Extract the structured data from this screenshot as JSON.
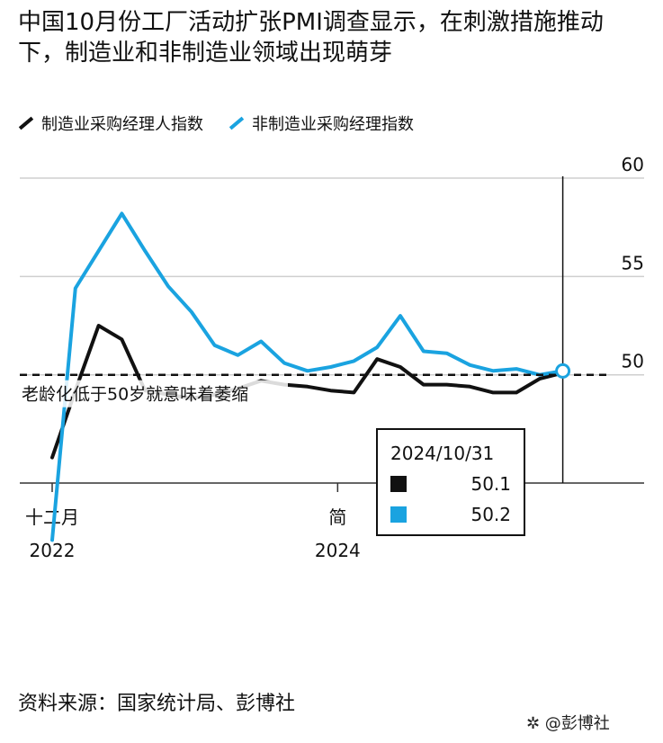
{
  "title": "中国10月份工厂活动扩张PMI调查显示，在刺激措施推动下，制造业和非制造业领域出现萌芽",
  "legend": [
    {
      "name": "制造业采购经理人指数",
      "color": "#111111"
    },
    {
      "name": "非制造业采购经理指数",
      "color": "#1aa3e0"
    }
  ],
  "annotation": "老龄化低于50岁就意味着萎缩",
  "tooltip": {
    "date": "2024/10/31",
    "rows": [
      {
        "color": "#111111",
        "value": "50.1"
      },
      {
        "color": "#1aa3e0",
        "value": "50.2"
      }
    ]
  },
  "source": "资料来源：国家统计局、彭博社",
  "watermark": "彭博社",
  "chart_data": {
    "type": "line",
    "ylim": [
      44.5,
      60
    ],
    "yticks": [
      50,
      55,
      60
    ],
    "x_labels": [
      {
        "label": "十二月",
        "year": "2022",
        "x": 0
      },
      {
        "label": "简",
        "year": "2024",
        "x": 12.3
      }
    ],
    "reference_line": 50,
    "series": [
      {
        "name": "制造业采购经理人指数",
        "color": "#111111",
        "points": [
          [
            0,
            45.8
          ],
          [
            1,
            49.2
          ],
          [
            2,
            52.5
          ],
          [
            3,
            51.8
          ],
          [
            4,
            49.2
          ],
          [
            5,
            49.0
          ],
          [
            6,
            48.8
          ],
          [
            7,
            49.0
          ],
          [
            8,
            49.3
          ],
          [
            9,
            49.7
          ],
          [
            10,
            49.5
          ],
          [
            11,
            49.4
          ],
          [
            12,
            49.2
          ],
          [
            13,
            49.1
          ],
          [
            14,
            50.8
          ],
          [
            15,
            50.4
          ],
          [
            16,
            49.5
          ],
          [
            17,
            49.5
          ],
          [
            18,
            49.4
          ],
          [
            19,
            49.1
          ],
          [
            20,
            49.1
          ],
          [
            21,
            49.8
          ],
          [
            22,
            50.1
          ]
        ]
      },
      {
        "name": "非制造业采购经理指数",
        "color": "#1aa3e0",
        "points": [
          [
            0,
            41.6
          ],
          [
            1,
            54.4
          ],
          [
            2,
            56.3
          ],
          [
            3,
            58.2
          ],
          [
            4,
            56.3
          ],
          [
            5,
            54.5
          ],
          [
            6,
            53.2
          ],
          [
            7,
            51.5
          ],
          [
            8,
            51.0
          ],
          [
            9,
            51.7
          ],
          [
            10,
            50.6
          ],
          [
            11,
            50.2
          ],
          [
            12,
            50.4
          ],
          [
            13,
            50.7
          ],
          [
            14,
            51.4
          ],
          [
            15,
            53.0
          ],
          [
            16,
            51.2
          ],
          [
            17,
            51.1
          ],
          [
            18,
            50.5
          ],
          [
            19,
            50.2
          ],
          [
            20,
            50.3
          ],
          [
            21,
            50.0
          ],
          [
            22,
            50.2
          ]
        ]
      }
    ]
  }
}
